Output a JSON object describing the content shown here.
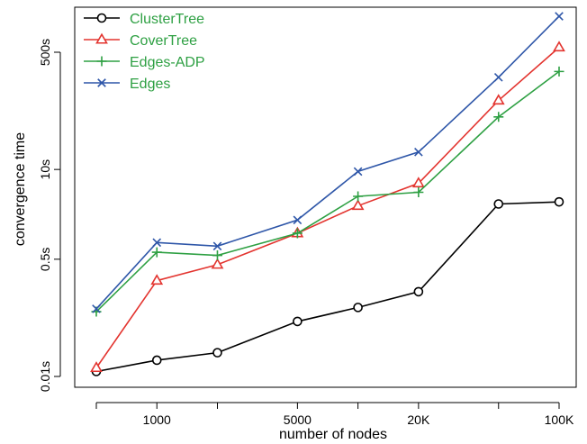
{
  "chart_data": {
    "type": "line",
    "title": "",
    "xlabel": "number of nodes",
    "ylabel": "convergence time",
    "x_scale": "log",
    "y_scale": "log",
    "x_ticks": [
      {
        "value": 1000,
        "label": "1000"
      },
      {
        "value": 5000,
        "label": "5000"
      },
      {
        "value": 20000,
        "label": "20K"
      },
      {
        "value": 100000,
        "label": "100K"
      }
    ],
    "y_ticks": [
      {
        "value": 0.01,
        "label": "0.01s"
      },
      {
        "value": 0.5,
        "label": "0.5s"
      },
      {
        "value": 10,
        "label": "10s"
      },
      {
        "value": 500,
        "label": "500s"
      }
    ],
    "x": [
      500,
      1000,
      2000,
      5000,
      10000,
      20000,
      50000,
      100000
    ],
    "legend_position": "top-left",
    "series": [
      {
        "name": "ClusterTree",
        "color": "#000000",
        "marker": "circle",
        "values": [
          0.0118,
          0.0172,
          0.0221,
          0.0627,
          0.1,
          0.169,
          3.16,
          3.39
        ]
      },
      {
        "name": "CoverTree",
        "color": "#e3342f",
        "marker": "triangle",
        "values": [
          0.0133,
          0.245,
          0.417,
          1.19,
          2.97,
          6.3,
          100,
          588
        ]
      },
      {
        "name": "Edges-ADP",
        "color": "#2ea043",
        "marker": "plus",
        "values": [
          0.0869,
          0.631,
          0.569,
          1.19,
          4.08,
          4.67,
          57.8,
          263
        ]
      },
      {
        "name": "Edges",
        "color": "#2e56a8",
        "marker": "x",
        "values": [
          0.0955,
          0.871,
          0.774,
          1.85,
          9.35,
          17.9,
          217,
          1661
        ]
      }
    ]
  }
}
